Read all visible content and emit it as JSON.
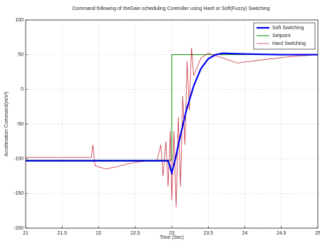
{
  "chart_data": {
    "type": "line",
    "title": "Command following of theGain scheduling Controller using Hard or Soft(Fuzzy) Switching",
    "xlabel": "Time (Sec)",
    "ylabel": "Acceleration Command(m/s²)",
    "xlim": [
      21,
      25
    ],
    "ylim": [
      -200,
      100
    ],
    "xticks": [
      21,
      21.5,
      22,
      22.5,
      23,
      23.5,
      24,
      24.5,
      25
    ],
    "yticks": [
      -200,
      -150,
      -100,
      -50,
      0,
      50,
      100
    ],
    "grid": true,
    "legend": "top-right",
    "series": [
      {
        "name": "Soft Switching",
        "color": "#0000ee",
        "width": 2.2,
        "x": [
          21,
          22.5,
          22.95,
          23.0,
          23.05,
          23.1,
          23.2,
          23.3,
          23.4,
          23.5,
          23.6,
          23.7,
          24,
          24.5,
          25
        ],
        "values": [
          -103,
          -103,
          -103,
          -120,
          -100,
          -75,
          -30,
          5,
          30,
          44,
          50,
          52,
          51,
          50,
          50
        ]
      },
      {
        "name": "Setpoint",
        "color": "#008800",
        "width": 1,
        "x": [
          21,
          23,
          23,
          25
        ],
        "values": [
          -102,
          -102,
          50,
          50
        ]
      },
      {
        "name": "Hard Switching",
        "color": "#cc3344",
        "width": 0.8,
        "x": [
          21,
          21.9,
          21.92,
          21.95,
          22.1,
          22.5,
          22.8,
          22.85,
          22.88,
          22.92,
          22.95,
          22.98,
          23.0,
          23.03,
          23.06,
          23.09,
          23.12,
          23.15,
          23.18,
          23.21,
          23.24,
          23.27,
          23.3,
          23.4,
          23.5,
          23.7,
          23.9,
          24.2,
          24.6,
          25
        ],
        "values": [
          -98,
          -98,
          -80,
          -110,
          -115,
          -105,
          -102,
          -80,
          -125,
          -75,
          -140,
          -60,
          -160,
          -60,
          -170,
          -40,
          -140,
          -10,
          -80,
          40,
          -30,
          60,
          20,
          45,
          52,
          45,
          38,
          42,
          47,
          50
        ]
      }
    ]
  }
}
